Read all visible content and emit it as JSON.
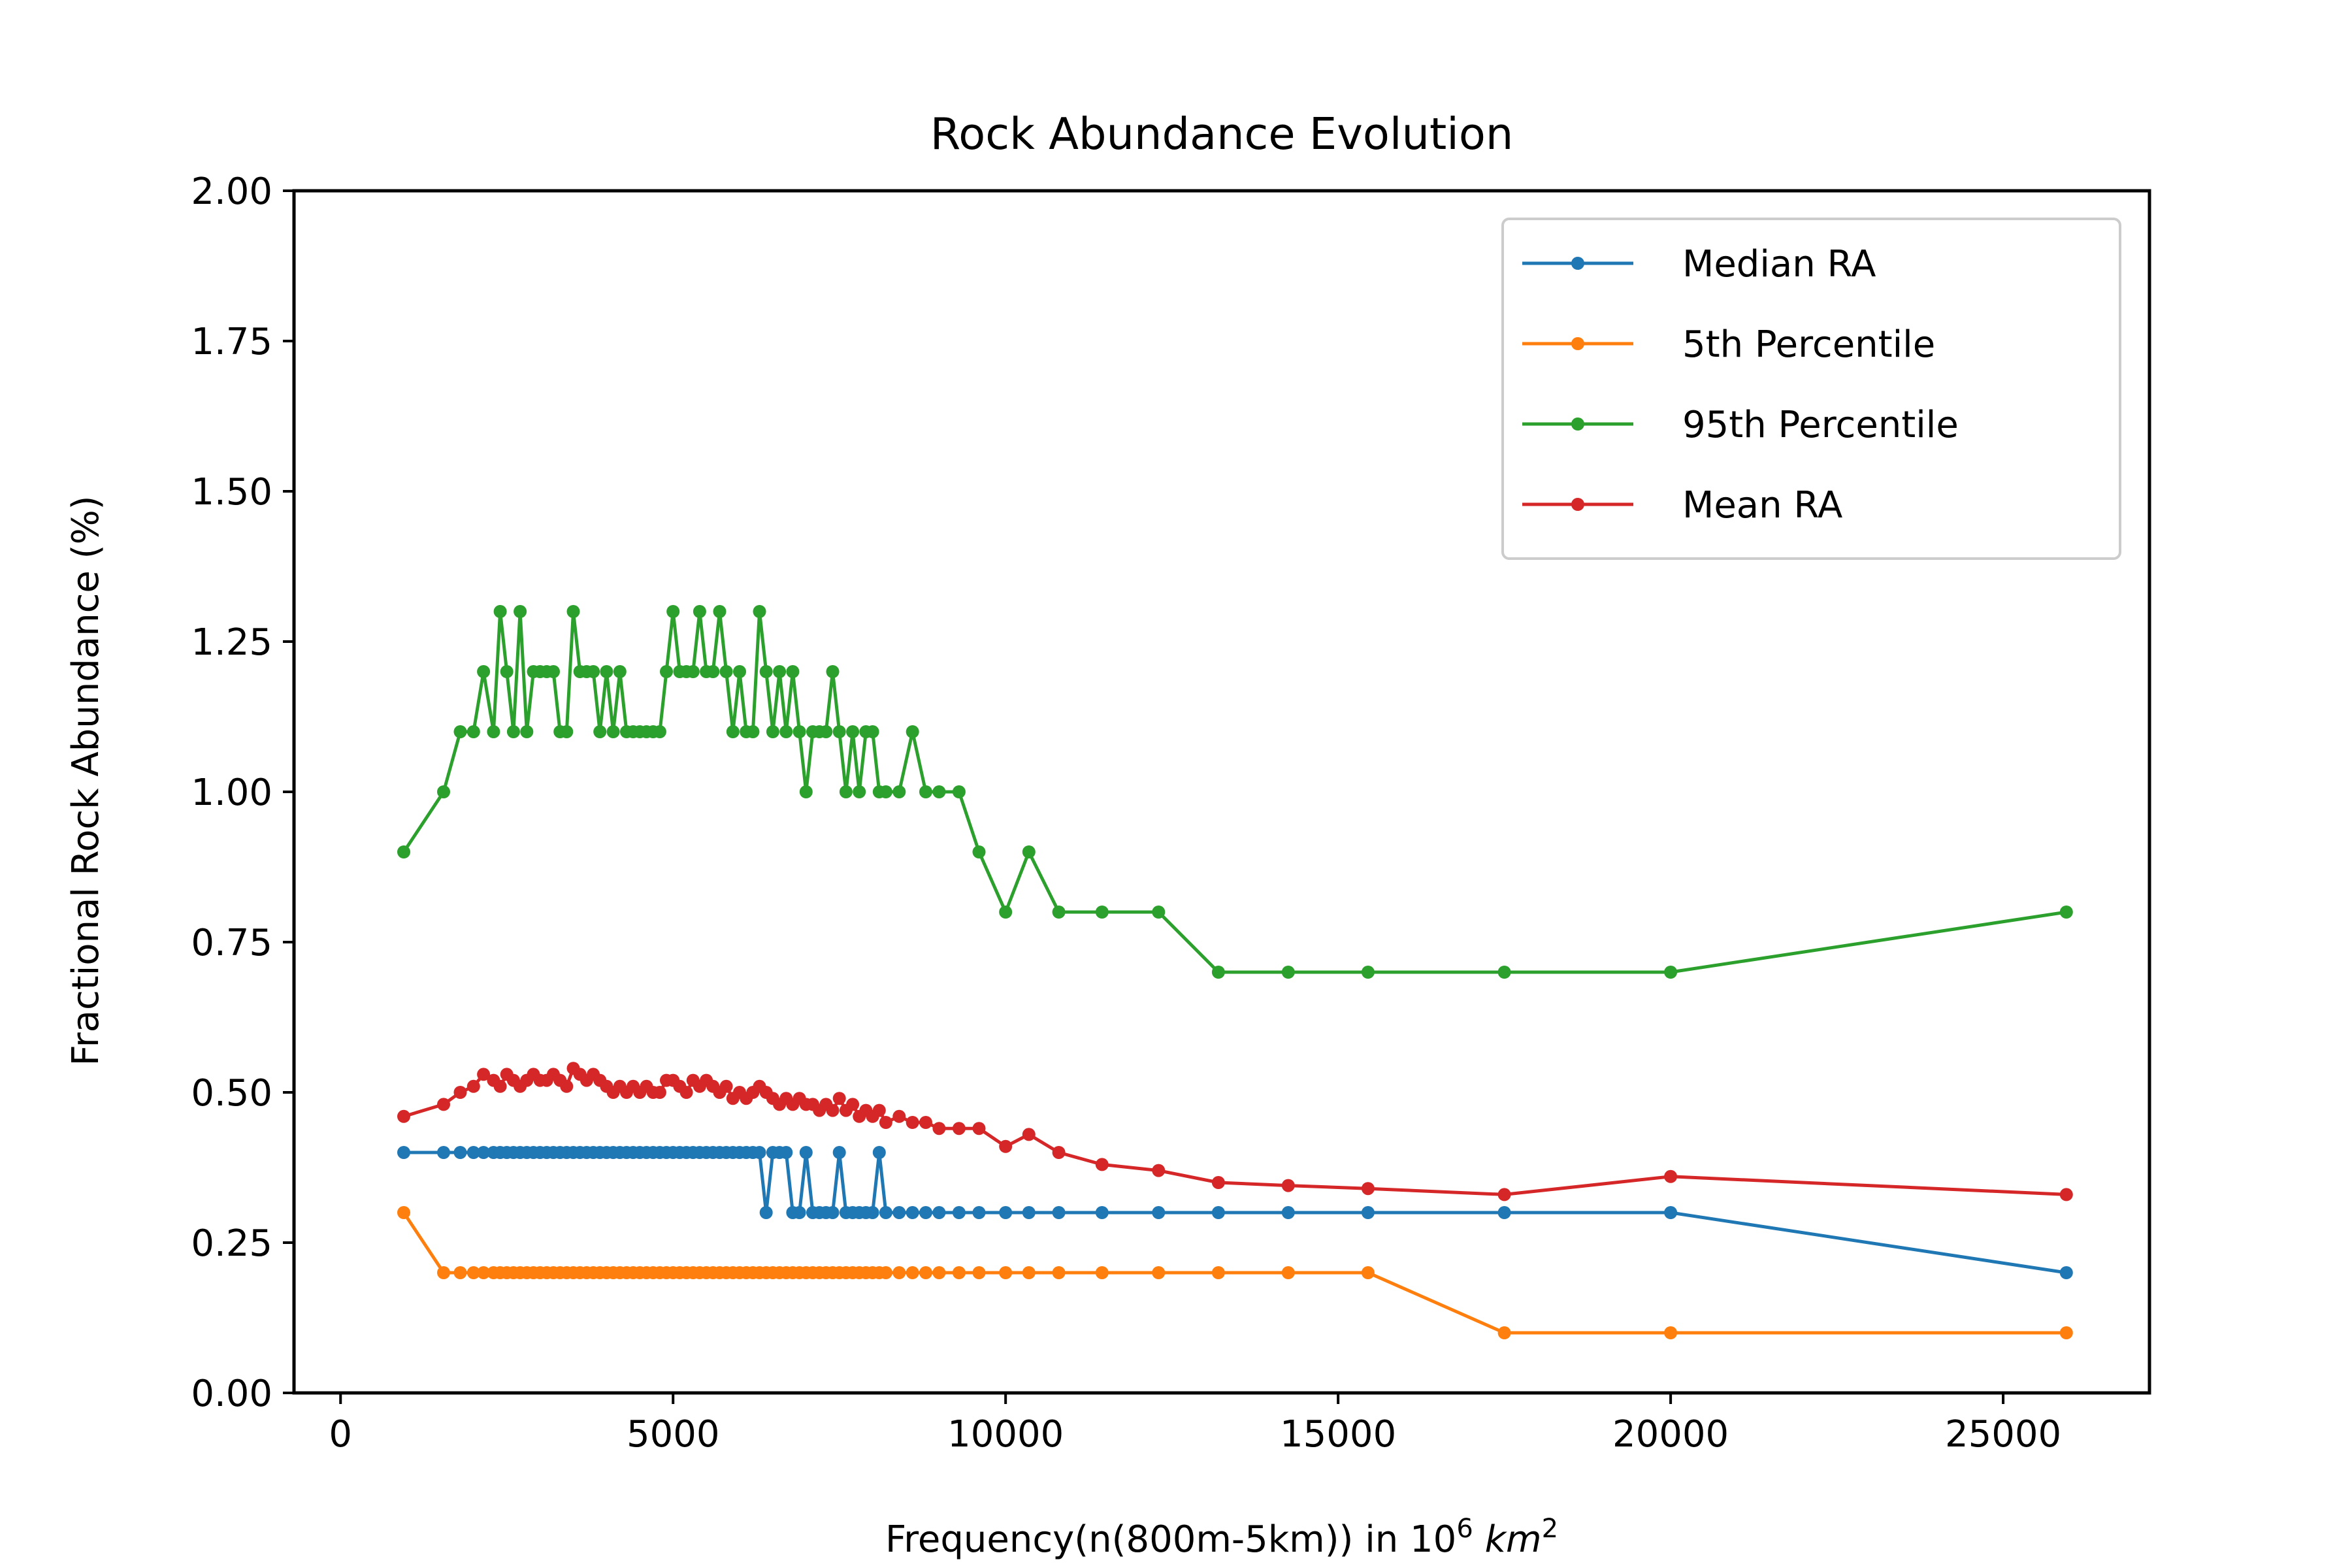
{
  "chart_data": {
    "type": "line",
    "title": "Rock Abundance Evolution",
    "xlabel": "Frequency(n(800m-5km)) in 10^6 km^2",
    "xlabel_parts": {
      "prefix": "Frequency(n(800m-5km)) in 10",
      "exp": "6",
      "unit": "km",
      "unit_exp": "2"
    },
    "ylabel": "Fractional Rock Abundance (%)",
    "xlim": [
      -700,
      27200
    ],
    "ylim": [
      0,
      2
    ],
    "xticks": [
      0,
      5000,
      10000,
      15000,
      20000,
      25000
    ],
    "xtick_labels": [
      "0",
      "5000",
      "10000",
      "15000",
      "20000",
      "25000"
    ],
    "yticks": [
      0,
      0.25,
      0.5,
      0.75,
      1.0,
      1.25,
      1.5,
      1.75,
      2.0
    ],
    "ytick_labels": [
      "0.00",
      "0.25",
      "0.50",
      "0.75",
      "1.00",
      "1.25",
      "1.50",
      "1.75",
      "2.00"
    ],
    "grid": false,
    "legend_position": "top-right",
    "x": [
      950,
      1550,
      1800,
      2000,
      2150,
      2300,
      2400,
      2500,
      2600,
      2700,
      2800,
      2900,
      3000,
      3100,
      3200,
      3300,
      3400,
      3500,
      3600,
      3700,
      3800,
      3900,
      4000,
      4100,
      4200,
      4300,
      4400,
      4500,
      4600,
      4700,
      4800,
      4900,
      5000,
      5100,
      5200,
      5300,
      5400,
      5500,
      5600,
      5700,
      5800,
      5900,
      6000,
      6100,
      6200,
      6300,
      6400,
      6500,
      6600,
      6700,
      6800,
      6900,
      7000,
      7100,
      7200,
      7300,
      7400,
      7500,
      7600,
      7700,
      7800,
      7900,
      8000,
      8100,
      8200,
      8400,
      8600,
      8800,
      9000,
      9300,
      9600,
      10000,
      10350,
      10800,
      11450,
      12300,
      13200,
      14250,
      15450,
      17500,
      20000,
      25950
    ],
    "series": [
      {
        "name": "Median RA",
        "color": "#1f77b4",
        "values": [
          0.4,
          0.4,
          0.4,
          0.4,
          0.4,
          0.4,
          0.4,
          0.4,
          0.4,
          0.4,
          0.4,
          0.4,
          0.4,
          0.4,
          0.4,
          0.4,
          0.4,
          0.4,
          0.4,
          0.4,
          0.4,
          0.4,
          0.4,
          0.4,
          0.4,
          0.4,
          0.4,
          0.4,
          0.4,
          0.4,
          0.4,
          0.4,
          0.4,
          0.4,
          0.4,
          0.4,
          0.4,
          0.4,
          0.4,
          0.4,
          0.4,
          0.4,
          0.4,
          0.4,
          0.4,
          0.4,
          0.3,
          0.4,
          0.4,
          0.4,
          0.3,
          0.3,
          0.4,
          0.3,
          0.3,
          0.3,
          0.3,
          0.4,
          0.3,
          0.3,
          0.3,
          0.3,
          0.3,
          0.4,
          0.3,
          0.3,
          0.3,
          0.3,
          0.3,
          0.3,
          0.3,
          0.3,
          0.3,
          0.3,
          0.3,
          0.3,
          0.3,
          0.3,
          0.3,
          0.3,
          0.3,
          0.2
        ]
      },
      {
        "name": "5th Percentile",
        "color": "#ff7f0e",
        "values": [
          0.3,
          0.2,
          0.2,
          0.2,
          0.2,
          0.2,
          0.2,
          0.2,
          0.2,
          0.2,
          0.2,
          0.2,
          0.2,
          0.2,
          0.2,
          0.2,
          0.2,
          0.2,
          0.2,
          0.2,
          0.2,
          0.2,
          0.2,
          0.2,
          0.2,
          0.2,
          0.2,
          0.2,
          0.2,
          0.2,
          0.2,
          0.2,
          0.2,
          0.2,
          0.2,
          0.2,
          0.2,
          0.2,
          0.2,
          0.2,
          0.2,
          0.2,
          0.2,
          0.2,
          0.2,
          0.2,
          0.2,
          0.2,
          0.2,
          0.2,
          0.2,
          0.2,
          0.2,
          0.2,
          0.2,
          0.2,
          0.2,
          0.2,
          0.2,
          0.2,
          0.2,
          0.2,
          0.2,
          0.2,
          0.2,
          0.2,
          0.2,
          0.2,
          0.2,
          0.2,
          0.2,
          0.2,
          0.2,
          0.2,
          0.2,
          0.2,
          0.2,
          0.2,
          0.2,
          0.1,
          0.1,
          0.1
        ]
      },
      {
        "name": "95th Percentile",
        "color": "#2ca02c",
        "values": [
          0.9,
          1.0,
          1.1,
          1.1,
          1.2,
          1.1,
          1.3,
          1.2,
          1.1,
          1.3,
          1.1,
          1.2,
          1.2,
          1.2,
          1.2,
          1.1,
          1.1,
          1.3,
          1.2,
          1.2,
          1.2,
          1.1,
          1.2,
          1.1,
          1.2,
          1.1,
          1.1,
          1.1,
          1.1,
          1.1,
          1.1,
          1.2,
          1.3,
          1.2,
          1.2,
          1.2,
          1.3,
          1.2,
          1.2,
          1.3,
          1.2,
          1.1,
          1.2,
          1.1,
          1.1,
          1.3,
          1.2,
          1.1,
          1.2,
          1.1,
          1.2,
          1.1,
          1.0,
          1.1,
          1.1,
          1.1,
          1.2,
          1.1,
          1.0,
          1.1,
          1.0,
          1.1,
          1.1,
          1.0,
          1.0,
          1.0,
          1.1,
          1.0,
          1.0,
          1.0,
          0.9,
          0.8,
          0.9,
          0.8,
          0.8,
          0.8,
          0.7,
          0.7,
          0.7,
          0.7,
          0.7,
          0.8
        ]
      },
      {
        "name": "Mean RA",
        "color": "#d62728",
        "values": [
          0.46,
          0.48,
          0.5,
          0.51,
          0.53,
          0.52,
          0.51,
          0.53,
          0.52,
          0.51,
          0.52,
          0.53,
          0.52,
          0.52,
          0.53,
          0.52,
          0.51,
          0.54,
          0.53,
          0.52,
          0.53,
          0.52,
          0.51,
          0.5,
          0.51,
          0.5,
          0.51,
          0.5,
          0.51,
          0.5,
          0.5,
          0.52,
          0.52,
          0.51,
          0.5,
          0.52,
          0.51,
          0.52,
          0.51,
          0.5,
          0.51,
          0.49,
          0.5,
          0.49,
          0.5,
          0.51,
          0.5,
          0.49,
          0.48,
          0.49,
          0.48,
          0.49,
          0.48,
          0.48,
          0.47,
          0.48,
          0.47,
          0.49,
          0.47,
          0.48,
          0.46,
          0.47,
          0.46,
          0.47,
          0.45,
          0.46,
          0.45,
          0.45,
          0.44,
          0.44,
          0.44,
          0.41,
          0.43,
          0.4,
          0.38,
          0.37,
          0.35,
          0.345,
          0.34,
          0.33,
          0.36,
          0.33
        ]
      }
    ]
  }
}
